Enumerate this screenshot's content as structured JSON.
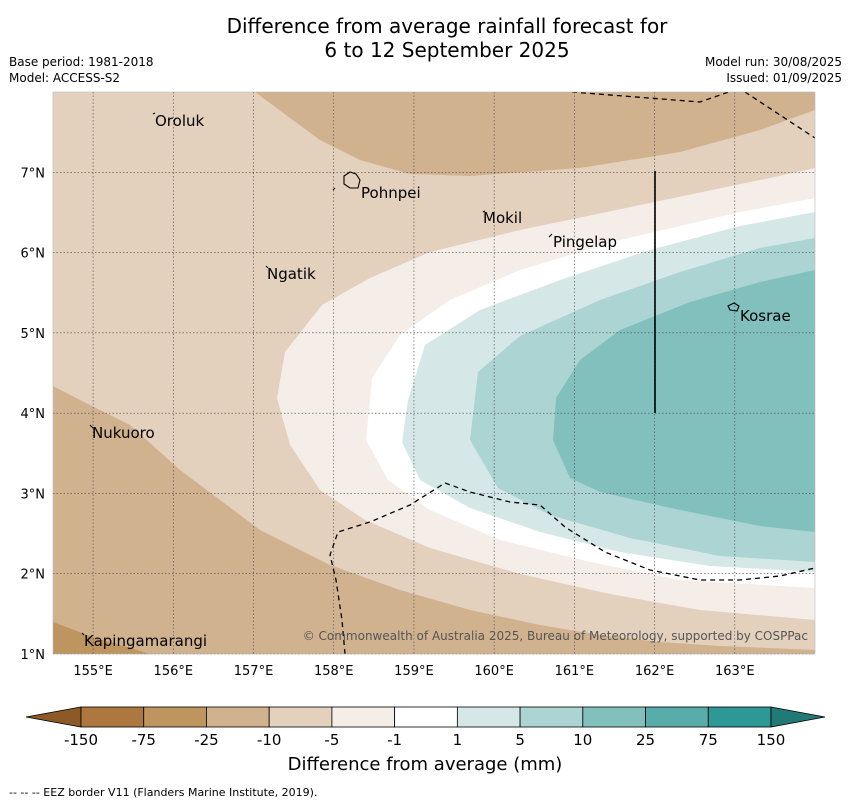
{
  "header": {
    "title_line1": "Difference from average rainfall forecast for",
    "title_line2": "6 to 12 September 2025",
    "base_period": "Base period: 1981-2018",
    "model": "Model: ACCESS-S2",
    "model_run": "Model run: 30/08/2025",
    "issued": "Issued: 01/09/2025"
  },
  "map": {
    "lon_range": [
      154.5,
      164.0
    ],
    "lat_range": [
      1.0,
      8.0
    ],
    "lon_ticks": [
      "155°E",
      "156°E",
      "157°E",
      "158°E",
      "159°E",
      "160°E",
      "161°E",
      "162°E",
      "163°E"
    ],
    "lat_ticks": [
      "1°N",
      "2°N",
      "3°N",
      "4°N",
      "5°N",
      "6°N",
      "7°N"
    ],
    "places": [
      {
        "name": "Oroluk"
      },
      {
        "name": "Pohnpei"
      },
      {
        "name": "Mokil"
      },
      {
        "name": "Pingelap"
      },
      {
        "name": "Ngatik"
      },
      {
        "name": "Kosrae"
      },
      {
        "name": "Nukuoro"
      },
      {
        "name": "Kapingamarangi"
      }
    ],
    "copyright": "© Commonwealth of Australia 2025, Bureau of Meteorology, supported by COSPPac"
  },
  "colorbar": {
    "labels": [
      "-150",
      "-75",
      "-25",
      "-10",
      "-5",
      "-1",
      "1",
      "5",
      "10",
      "25",
      "75",
      "150"
    ],
    "colors": [
      "#ad7840",
      "#bf955f",
      "#d1b28f",
      "#e3d0bd",
      "#f4ede8",
      "#ffffff",
      "#d5e8e7",
      "#acd4d3",
      "#82c0be",
      "#58aca9",
      "#2e9894"
    ],
    "end_low": "#8c5a27",
    "end_high": "#217a76",
    "title": "Difference from average (mm)"
  },
  "footnote": "--  --  -- EEZ border V11 (Flanders Marine Institute, 2019)."
}
